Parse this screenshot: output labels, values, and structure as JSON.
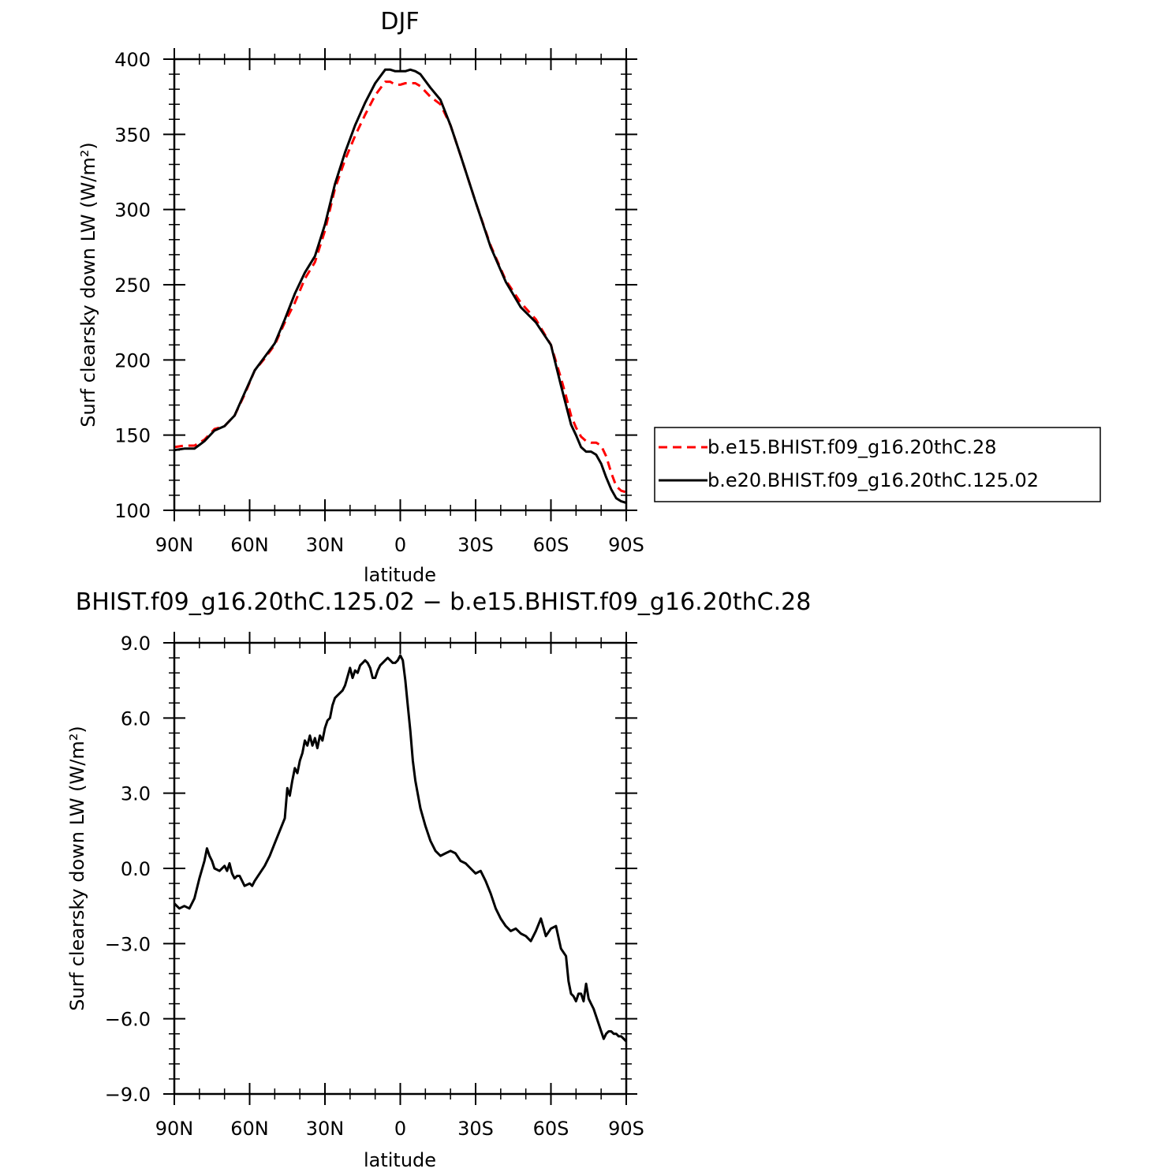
{
  "chart_data": [
    {
      "type": "line",
      "title": "DJF",
      "xlabel": "latitude",
      "ylabel": "Surf clearsky down LW (W/m²)",
      "xlim": [
        90,
        -90
      ],
      "ylim": [
        100,
        400
      ],
      "yticks": [
        100,
        150,
        200,
        250,
        300,
        350,
        400
      ],
      "ytick_labels": [
        "100",
        "150",
        "200",
        "250",
        "300",
        "350",
        "400"
      ],
      "xticks": [
        90,
        60,
        30,
        0,
        -30,
        -60,
        -90
      ],
      "xtick_labels": [
        "90N",
        "60N",
        "30N",
        "0",
        "30S",
        "60S",
        "90S"
      ],
      "legend_position": "right",
      "series": [
        {
          "name": "b.e15.BHIST.f09_g16.20thC.28",
          "color": "#ff0000",
          "style": "dashed",
          "x": [
            90,
            86,
            82,
            78,
            74,
            70,
            66,
            62,
            58,
            54,
            50,
            46,
            42,
            38,
            34,
            30,
            26,
            22,
            18,
            14,
            10,
            6,
            4,
            2,
            0,
            -2,
            -4,
            -6,
            -8,
            -12,
            -16,
            -20,
            -24,
            -30,
            -36,
            -42,
            -48,
            -54,
            -60,
            -64,
            -66,
            -68,
            -70,
            -72,
            -74,
            -76,
            -78,
            -80,
            -82,
            -84,
            -86,
            -88,
            -90
          ],
          "y": [
            142,
            143,
            143,
            147,
            154,
            156,
            163,
            177,
            193,
            201,
            210,
            225,
            238,
            254,
            265,
            286,
            314,
            333,
            349,
            363,
            376,
            385,
            385,
            383,
            383,
            384,
            384,
            384,
            382,
            375,
            370,
            356,
            336,
            305,
            276,
            253,
            238,
            227,
            210,
            188,
            176,
            163,
            155,
            149,
            146,
            145,
            145,
            143,
            136,
            125,
            116,
            113,
            112
          ]
        },
        {
          "name": "b.e20.BHIST.f09_g16.20thC.125.02",
          "color": "#000000",
          "style": "solid",
          "x": [
            90,
            86,
            82,
            78,
            74,
            70,
            66,
            62,
            58,
            54,
            50,
            46,
            42,
            38,
            34,
            30,
            26,
            22,
            18,
            14,
            10,
            6,
            4,
            2,
            0,
            -2,
            -4,
            -6,
            -8,
            -12,
            -16,
            -20,
            -24,
            -30,
            -36,
            -42,
            -48,
            -54,
            -60,
            -64,
            -66,
            -68,
            -70,
            -72,
            -74,
            -76,
            -78,
            -80,
            -82,
            -84,
            -86,
            -88,
            -90
          ],
          "y": [
            140,
            141,
            141,
            146,
            153,
            156,
            163,
            178,
            193,
            202,
            211,
            227,
            244,
            258,
            269,
            290,
            317,
            338,
            356,
            371,
            384,
            393,
            393,
            392,
            392,
            392,
            393,
            392,
            390,
            381,
            373,
            356,
            336,
            305,
            275,
            252,
            235,
            225,
            210,
            183,
            170,
            157,
            150,
            142,
            139,
            139,
            137,
            131,
            122,
            114,
            108,
            106,
            105
          ]
        }
      ]
    },
    {
      "type": "line",
      "title": "BHIST.f09_g16.20thC.125.02 − b.e15.BHIST.f09_g16.20thC.28",
      "xlabel": "latitude",
      "ylabel": "Surf clearsky down LW (W/m²)",
      "xlim": [
        90,
        -90
      ],
      "ylim": [
        -9,
        9
      ],
      "yticks": [
        -9,
        -6,
        -3,
        0,
        3,
        6,
        9
      ],
      "ytick_labels": [
        "−9.0",
        "−6.0",
        "−3.0",
        "0.0",
        "3.0",
        "6.0",
        "9.0"
      ],
      "xticks": [
        90,
        60,
        30,
        0,
        -30,
        -60,
        -90
      ],
      "xtick_labels": [
        "90N",
        "60N",
        "30N",
        "0",
        "30S",
        "60S",
        "90S"
      ],
      "series": [
        {
          "color": "#000000",
          "style": "solid",
          "x": [
            90,
            88,
            86,
            84,
            82,
            80,
            78,
            77,
            76,
            75,
            74,
            72,
            70,
            69,
            68,
            67,
            66,
            65,
            64,
            62,
            60,
            59,
            58,
            56,
            54,
            52,
            50,
            48,
            46,
            45,
            44,
            43,
            42,
            41,
            40,
            39,
            38,
            37,
            36,
            35,
            34,
            33,
            32,
            31,
            30,
            29,
            28,
            27,
            26,
            25,
            24,
            23,
            22,
            20,
            19,
            18,
            17,
            16,
            15,
            14,
            13,
            12,
            11,
            10,
            9,
            8,
            7,
            6,
            5,
            4,
            3,
            2,
            1,
            0,
            -1,
            -2,
            -3,
            -4,
            -5,
            -6,
            -8,
            -10,
            -12,
            -14,
            -16,
            -18,
            -20,
            -22,
            -24,
            -26,
            -28,
            -30,
            -32,
            -34,
            -36,
            -38,
            -40,
            -42,
            -44,
            -46,
            -48,
            -50,
            -52,
            -54,
            -56,
            -58,
            -60,
            -62,
            -64,
            -66,
            -67,
            -68,
            -69,
            -70,
            -71,
            -72,
            -73,
            -74,
            -75,
            -76,
            -77,
            -78,
            -79,
            -80,
            -81,
            -82,
            -83,
            -84,
            -85,
            -86,
            -87,
            -88,
            -89,
            -90
          ],
          "y": [
            -1.4,
            -1.6,
            -1.5,
            -1.6,
            -1.2,
            -0.4,
            0.3,
            0.8,
            0.5,
            0.3,
            0.0,
            -0.1,
            0.1,
            -0.1,
            0.2,
            -0.2,
            -0.4,
            -0.3,
            -0.3,
            -0.7,
            -0.6,
            -0.7,
            -0.5,
            -0.2,
            0.1,
            0.5,
            1.0,
            1.5,
            2.0,
            3.2,
            2.9,
            3.5,
            4.0,
            3.8,
            4.3,
            4.6,
            5.1,
            4.9,
            5.3,
            4.9,
            5.2,
            4.8,
            5.3,
            5.1,
            5.6,
            5.9,
            6.0,
            6.5,
            6.8,
            6.9,
            7.0,
            7.1,
            7.3,
            8.0,
            7.6,
            7.9,
            7.8,
            8.1,
            8.2,
            8.3,
            8.2,
            8.0,
            7.6,
            7.6,
            7.9,
            8.1,
            8.2,
            8.3,
            8.4,
            8.3,
            8.2,
            8.2,
            8.3,
            8.5,
            8.3,
            7.5,
            6.5,
            5.5,
            4.3,
            3.5,
            2.4,
            1.7,
            1.1,
            0.7,
            0.5,
            0.6,
            0.7,
            0.6,
            0.3,
            0.2,
            0.0,
            -0.2,
            -0.1,
            -0.5,
            -1.0,
            -1.6,
            -2.0,
            -2.3,
            -2.5,
            -2.4,
            -2.6,
            -2.7,
            -2.9,
            -2.5,
            -2.0,
            -2.7,
            -2.4,
            -2.3,
            -3.2,
            -3.5,
            -4.5,
            -5.0,
            -5.1,
            -5.3,
            -5.0,
            -5.0,
            -5.3,
            -4.6,
            -5.2,
            -5.4,
            -5.6,
            -5.9,
            -6.2,
            -6.5,
            -6.8,
            -6.6,
            -6.5,
            -6.5,
            -6.6,
            -6.6,
            -6.7,
            -6.7,
            -6.8,
            -6.9
          ]
        }
      ]
    }
  ],
  "legend": {
    "entries": [
      {
        "label": "b.e15.BHIST.f09_g16.20thC.28",
        "color": "#ff0000",
        "style": "dashed"
      },
      {
        "label": "b.e20.BHIST.f09_g16.20thC.125.02",
        "color": "#000000",
        "style": "solid"
      }
    ]
  }
}
